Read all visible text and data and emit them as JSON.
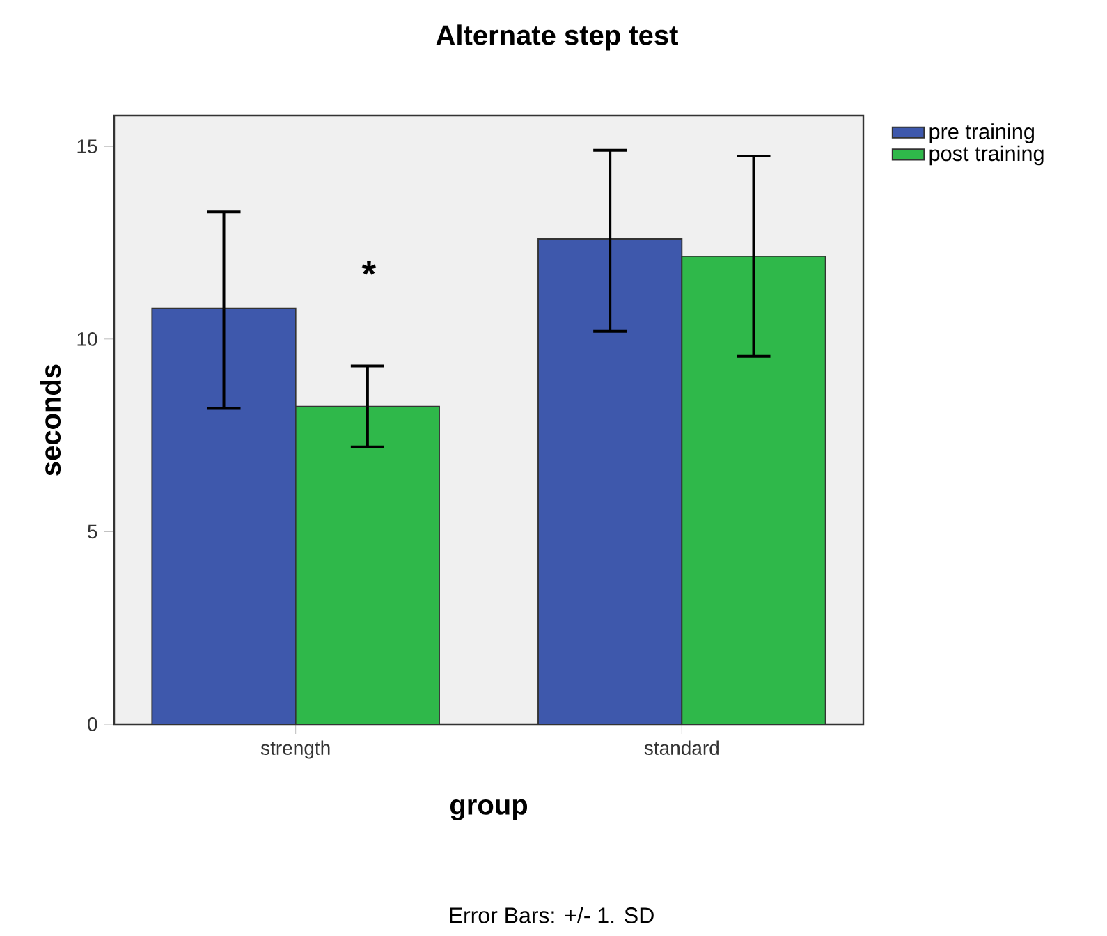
{
  "chart_data": {
    "type": "bar",
    "title": "Alternate step test",
    "xlabel": "group",
    "ylabel": "seconds",
    "categories": [
      "strength",
      "standard"
    ],
    "series": [
      {
        "name": "pre training",
        "color": "#3e58ac",
        "values": [
          10.8,
          12.6
        ],
        "errors": [
          [
            8.2,
            13.3
          ],
          [
            10.2,
            14.9
          ]
        ]
      },
      {
        "name": "post training",
        "color": "#2fb84a",
        "values": [
          8.25,
          12.15
        ],
        "errors": [
          [
            7.2,
            9.3
          ],
          [
            9.55,
            14.75
          ]
        ]
      }
    ],
    "ylim": [
      0,
      15.8
    ],
    "yticks": [
      0,
      5,
      10,
      15
    ],
    "legend": "right",
    "annotations": [
      "*",
      "Error Bars: +/- 1. SD"
    ]
  }
}
